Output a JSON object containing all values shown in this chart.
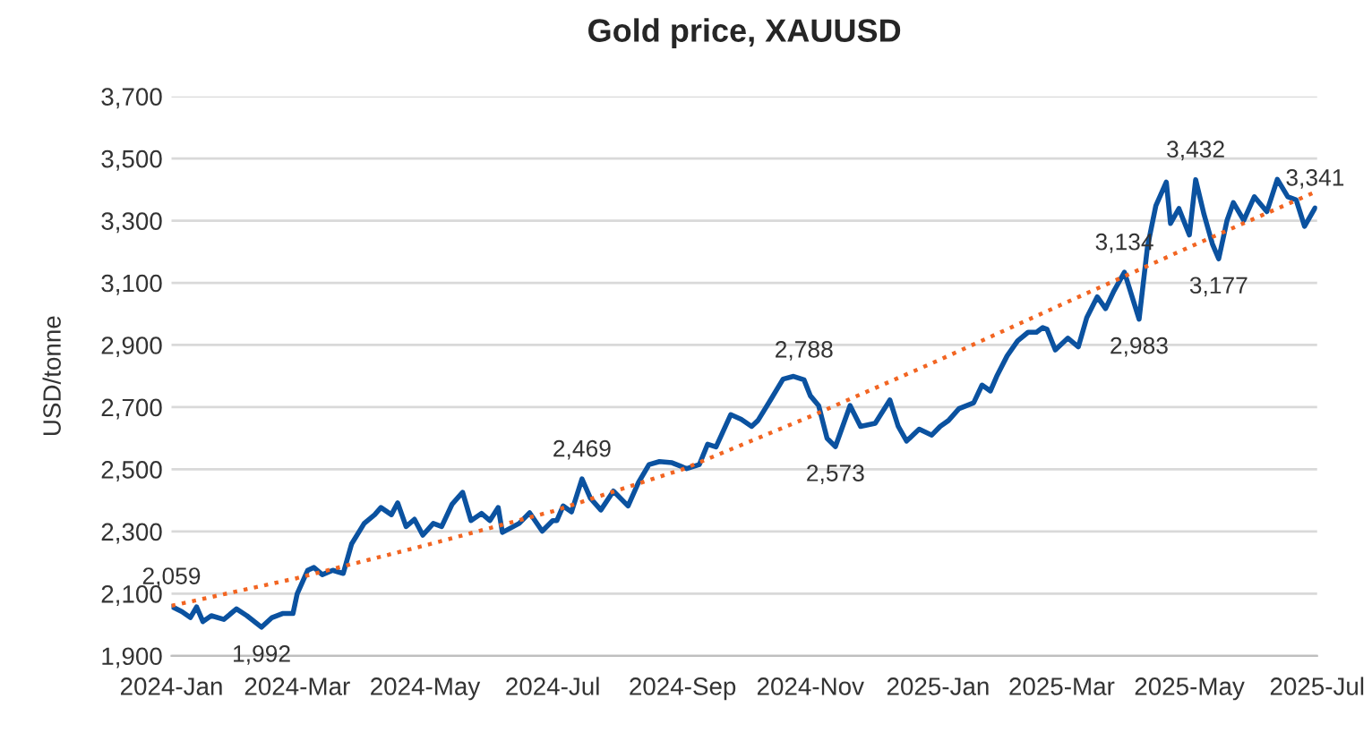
{
  "chart_data": {
    "type": "line",
    "title": "Gold price, XAUUSD",
    "ylabel": "USD/tonne",
    "x": [
      "2024-01-01",
      "2024-01-06",
      "2024-01-10",
      "2024-01-13",
      "2024-01-16",
      "2024-01-20",
      "2024-01-26",
      "2024-02-01",
      "2024-02-06",
      "2024-02-13",
      "2024-02-18",
      "2024-02-23",
      "2024-02-28",
      "2024-03-01",
      "2024-03-06",
      "2024-03-09",
      "2024-03-13",
      "2024-03-18",
      "2024-03-23",
      "2024-03-27",
      "2024-04-02",
      "2024-04-07",
      "2024-04-10",
      "2024-04-15",
      "2024-04-18",
      "2024-04-22",
      "2024-04-26",
      "2024-04-30",
      "2024-05-05",
      "2024-05-09",
      "2024-05-14",
      "2024-05-19",
      "2024-05-23",
      "2024-05-28",
      "2024-06-01",
      "2024-06-05",
      "2024-06-07",
      "2024-06-15",
      "2024-06-20",
      "2024-06-26",
      "2024-07-01",
      "2024-07-03",
      "2024-07-06",
      "2024-07-10",
      "2024-07-15",
      "2024-07-19",
      "2024-07-24",
      "2024-07-30",
      "2024-08-06",
      "2024-08-11",
      "2024-08-16",
      "2024-08-21",
      "2024-08-27",
      "2024-09-03",
      "2024-09-09",
      "2024-09-13",
      "2024-09-17",
      "2024-09-24",
      "2024-09-29",
      "2024-10-04",
      "2024-10-07",
      "2024-10-13",
      "2024-10-19",
      "2024-10-24",
      "2024-10-29",
      "2024-11-01",
      "2024-11-05",
      "2024-11-09",
      "2024-11-13",
      "2024-11-20",
      "2024-11-25",
      "2024-12-02",
      "2024-12-09",
      "2024-12-13",
      "2024-12-17",
      "2024-12-23",
      "2024-12-29",
      "2025-01-02",
      "2025-01-06",
      "2025-01-11",
      "2025-01-18",
      "2025-01-22",
      "2025-01-26",
      "2025-01-29",
      "2025-02-03",
      "2025-02-08",
      "2025-02-13",
      "2025-02-17",
      "2025-02-20",
      "2025-02-22",
      "2025-02-26",
      "2025-03-04",
      "2025-03-09",
      "2025-03-13",
      "2025-03-18",
      "2025-03-22",
      "2025-03-26",
      "2025-03-31",
      "2025-04-07",
      "2025-04-11",
      "2025-04-15",
      "2025-04-20",
      "2025-04-22",
      "2025-04-26",
      "2025-05-01",
      "2025-05-04",
      "2025-05-08",
      "2025-05-12",
      "2025-05-15",
      "2025-05-19",
      "2025-05-22",
      "2025-05-27",
      "2025-06-01",
      "2025-06-07",
      "2025-06-12",
      "2025-06-17",
      "2025-06-21",
      "2025-06-25",
      "2025-06-30"
    ],
    "series": [
      {
        "color": "#0b52a0",
        "line_style": "solid",
        "values": [
          2059,
          2042,
          2023,
          2057,
          2010,
          2029,
          2017,
          2051,
          2029,
          1992,
          2023,
          2036,
          2036,
          2099,
          2175,
          2184,
          2161,
          2175,
          2165,
          2260,
          2326,
          2354,
          2377,
          2354,
          2392,
          2316,
          2339,
          2288,
          2326,
          2316,
          2388,
          2426,
          2335,
          2358,
          2335,
          2377,
          2297,
          2326,
          2360,
          2301,
          2335,
          2335,
          2382,
          2363,
          2469,
          2407,
          2369,
          2430,
          2382,
          2458,
          2515,
          2525,
          2521,
          2502,
          2515,
          2581,
          2572,
          2676,
          2661,
          2638,
          2657,
          2723,
          2790,
          2799,
          2788,
          2737,
          2705,
          2600,
          2573,
          2705,
          2638,
          2648,
          2723,
          2638,
          2591,
          2629,
          2610,
          2638,
          2657,
          2695,
          2714,
          2771,
          2752,
          2799,
          2865,
          2913,
          2941,
          2941,
          2956,
          2951,
          2884,
          2922,
          2894,
          2988,
          3055,
          3017,
          3074,
          3134,
          2983,
          3216,
          3348,
          3424,
          3291,
          3339,
          3254,
          3432,
          3320,
          3225,
          3177,
          3301,
          3358,
          3301,
          3377,
          3329,
          3433,
          3377,
          3367,
          3282,
          3341
        ]
      },
      {
        "type": "line",
        "color": "#f26522",
        "line_style": "dotted",
        "x": [
          "2024-01-01",
          "2024-03-01",
          "2024-05-01",
          "2024-07-01",
          "2024-09-01",
          "2024-11-01",
          "2025-01-01",
          "2025-03-01",
          "2025-05-01",
          "2025-07-01"
        ],
        "values": [
          2061,
          2150,
          2255,
          2365,
          2500,
          2670,
          2850,
          3030,
          3215,
          3395
        ]
      }
    ],
    "annotations": [
      {
        "text": "2,059",
        "x": "2024-01-01",
        "y": 2059
      },
      {
        "text": "1,992",
        "x": "2024-02-13",
        "y": 1992
      },
      {
        "text": "2,469",
        "x": "2024-07-15",
        "y": 2469
      },
      {
        "text": "2,788",
        "x": "2024-10-29",
        "y": 2788
      },
      {
        "text": "2,573",
        "x": "2024-11-13",
        "y": 2573
      },
      {
        "text": "3,134",
        "x": "2025-03-31",
        "y": 3134
      },
      {
        "text": "2,983",
        "x": "2025-04-07",
        "y": 2983
      },
      {
        "text": "3,432",
        "x": "2025-05-04",
        "y": 3432
      },
      {
        "text": "3,177",
        "x": "2025-05-15",
        "y": 3177
      },
      {
        "text": "3,341",
        "x": "2025-06-30",
        "y": 3341
      }
    ],
    "xlim": [
      "2024-01-01",
      "2025-07-01"
    ],
    "xticks": [
      {
        "value": "2024-01-01",
        "label": "2024-Jan"
      },
      {
        "value": "2024-03-01",
        "label": "2024-Mar"
      },
      {
        "value": "2024-05-01",
        "label": "2024-May"
      },
      {
        "value": "2024-07-01",
        "label": "2024-Jul"
      },
      {
        "value": "2024-09-01",
        "label": "2024-Sep"
      },
      {
        "value": "2024-11-01",
        "label": "2024-Nov"
      },
      {
        "value": "2025-01-01",
        "label": "2025-Jan"
      },
      {
        "value": "2025-03-01",
        "label": "2025-Mar"
      },
      {
        "value": "2025-05-01",
        "label": "2025-May"
      },
      {
        "value": "2025-07-01",
        "label": "2025-Jul"
      }
    ],
    "ylim": [
      1900,
      3700
    ],
    "yticks": [
      {
        "value": 1900,
        "label": "1,900"
      },
      {
        "value": 2100,
        "label": "2,100"
      },
      {
        "value": 2300,
        "label": "2,300"
      },
      {
        "value": 2500,
        "label": "2,500"
      },
      {
        "value": 2700,
        "label": "2,700"
      },
      {
        "value": 2900,
        "label": "2,900"
      },
      {
        "value": 3100,
        "label": "3,100"
      },
      {
        "value": 3300,
        "label": "3,300"
      },
      {
        "value": 3500,
        "label": "3,500"
      },
      {
        "value": 3700,
        "label": "3,700"
      }
    ],
    "grid": "y"
  }
}
